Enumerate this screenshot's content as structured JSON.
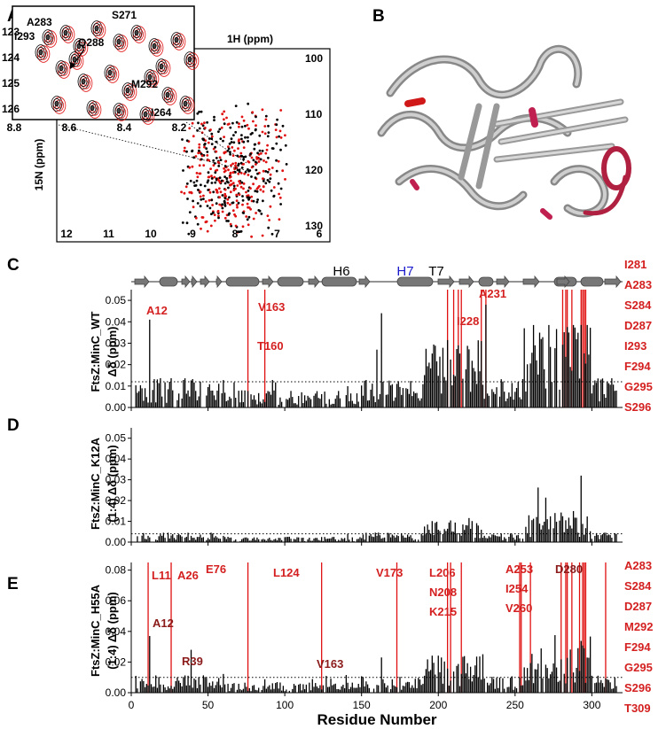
{
  "panel_labels": [
    "A",
    "B",
    "C",
    "D",
    "E"
  ],
  "panel_a": {
    "inset": {
      "x_ticks": [
        "8.8",
        "8.6",
        "8.4",
        "8.2"
      ],
      "y_ticks": [
        "123",
        "124",
        "125",
        "126"
      ],
      "peak_labels": [
        "A283",
        "I293",
        "S271",
        "Q288",
        "M292",
        "I264"
      ]
    },
    "main": {
      "x_title": "1H (ppm)",
      "y_title": "15N (ppm)",
      "x_ticks": [
        "12",
        "11",
        "10",
        "9",
        "8",
        "7",
        "6"
      ],
      "y_ticks": [
        "100",
        "110",
        "120",
        "130"
      ]
    },
    "colors": {
      "free": "#000000",
      "bound": "#e01010"
    }
  },
  "secondary_structure": {
    "labels": {
      "h6": "H6",
      "h7": "H7",
      "t7": "T7"
    },
    "h7_color": "#1a1acc"
  },
  "x_axis": {
    "title": "Residue Number",
    "ticks": [
      "0",
      "50",
      "100",
      "150",
      "200",
      "250",
      "300"
    ]
  },
  "colors": {
    "bars": "#000000",
    "highlight": "#e01010",
    "label_red": "#d42020",
    "label_dark": "#8b1a1a"
  },
  "chart_data": [
    {
      "panel": "C",
      "type": "bar",
      "ylabel_lines": [
        "FtsZ:MinC_WT",
        "Δδ (ppm)"
      ],
      "ylim": [
        0,
        0.055
      ],
      "y_ticks": [
        "0.00",
        "0.01",
        "0.02",
        "0.03",
        "0.04",
        "0.05"
      ],
      "threshold": 0.012,
      "red_lines": [
        76,
        87,
        206,
        210,
        213,
        215,
        228,
        231,
        281,
        283,
        284,
        287,
        293,
        294,
        295,
        296
      ],
      "labels_in_plot": [
        "A12",
        "V163",
        "T160",
        "I228",
        "A231"
      ],
      "right_labels": [
        "I281",
        "A283",
        "S284",
        "D287",
        "I293",
        "F294",
        "G295",
        "S296"
      ],
      "peaks": [
        {
          "residue": 12,
          "value": 0.041
        },
        {
          "residue": 163,
          "value": 0.044
        },
        {
          "residue": 160,
          "value": 0.027
        },
        {
          "residue": 228,
          "value": 0.031
        },
        {
          "residue": 231,
          "value": 0.048
        }
      ]
    },
    {
      "panel": "D",
      "type": "bar",
      "ylabel_lines": [
        "FtsZ:MinC_K12A",
        "(1:4) Δδ (ppm)"
      ],
      "ylim": [
        0,
        0.055
      ],
      "y_ticks": [
        "0.00",
        "0.01",
        "0.02",
        "0.03",
        "0.04",
        "0.05"
      ],
      "threshold": 0.004,
      "peaks": [
        {
          "residue": 293,
          "value": 0.032
        }
      ]
    },
    {
      "panel": "E",
      "type": "bar",
      "ylabel_lines": [
        "FtsZ:MinC_H55A",
        "(1:4) Δδ (ppm)"
      ],
      "ylim": [
        0,
        0.085
      ],
      "y_ticks": [
        "0.00",
        "0.02",
        "0.04",
        "0.06",
        "0.08"
      ],
      "threshold": 0.01,
      "red_lines": [
        11,
        26,
        76,
        124,
        173,
        206,
        208,
        215,
        253,
        254,
        260,
        280,
        283,
        284,
        287,
        292,
        294,
        295,
        296,
        309
      ],
      "labels_in_plot": [
        "L11",
        "A26",
        "E76",
        "L124",
        "V173",
        "L206",
        "N208",
        "K215",
        "A253",
        "I254",
        "V260",
        "D280",
        "A12",
        "R39",
        "V163"
      ],
      "right_labels": [
        "A283",
        "S284",
        "D287",
        "M292",
        "F294",
        "G295",
        "S296",
        "T309"
      ],
      "peaks": [
        {
          "residue": 12,
          "value": 0.037
        },
        {
          "residue": 39,
          "value": 0.028
        },
        {
          "residue": 163,
          "value": 0.023
        }
      ]
    }
  ]
}
